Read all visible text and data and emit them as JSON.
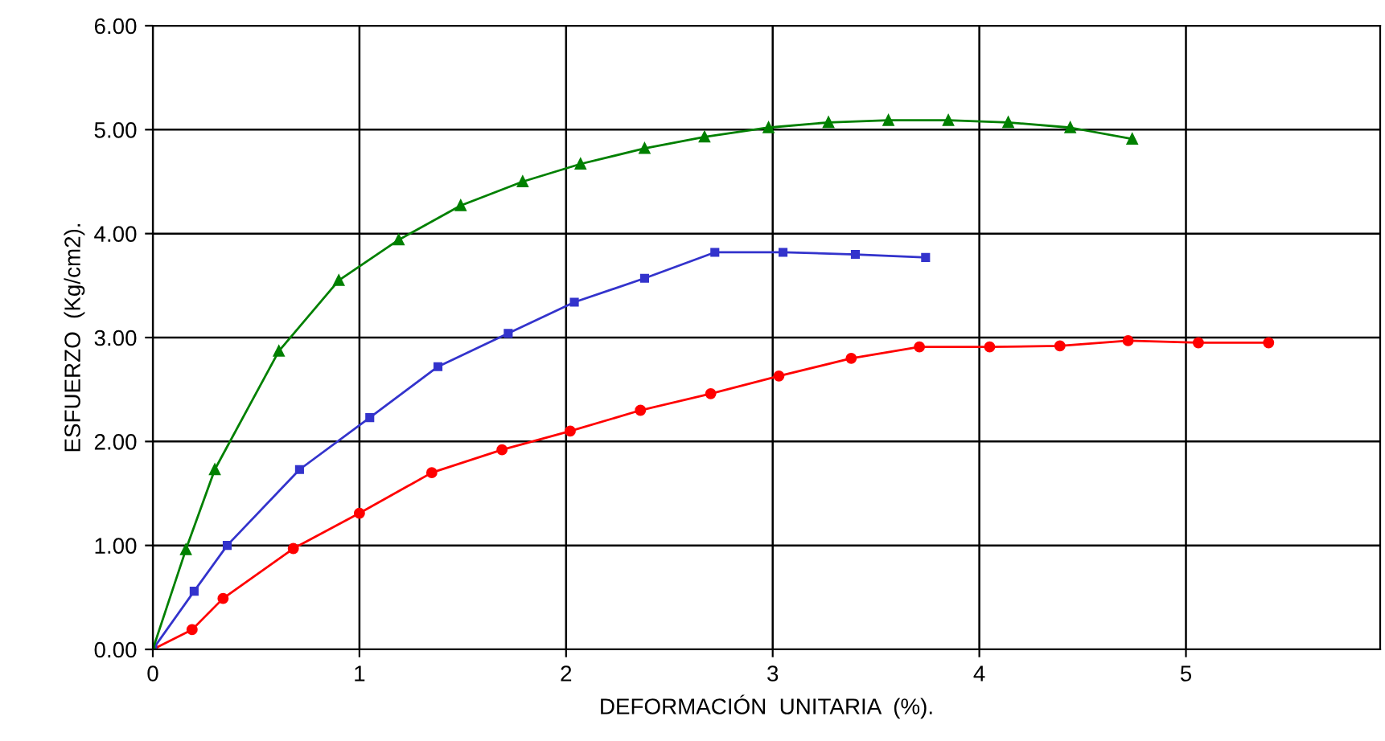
{
  "chart_data": {
    "type": "line",
    "xlabel": "DEFORMACIÓN  UNITARIA  (%).",
    "ylabel": "ESFUERZO  (Kg/cm2).",
    "xlim": [
      0,
      5.94
    ],
    "xticks": [
      0,
      1,
      2,
      3,
      4,
      5
    ],
    "ylim": [
      0,
      6
    ],
    "yticks": [
      {
        "value": 0,
        "label": "0.00"
      },
      {
        "value": 1,
        "label": "1.00"
      },
      {
        "value": 2,
        "label": "2.00"
      },
      {
        "value": 3,
        "label": "3.00"
      },
      {
        "value": 4,
        "label": "4.00"
      },
      {
        "value": 5,
        "label": "5.00"
      },
      {
        "value": 6,
        "label": "6.00"
      }
    ],
    "grid": true,
    "line_style": "solid",
    "series": [
      {
        "color": "#ff0000",
        "marker": "circle",
        "x": [
          0,
          0.19,
          0.34,
          0.68,
          1.0,
          1.35,
          1.69,
          2.02,
          2.36,
          2.7,
          3.03,
          3.38,
          3.71,
          4.05,
          4.39,
          4.72,
          5.06,
          5.4
        ],
        "values": [
          0,
          0.19,
          0.49,
          0.97,
          1.31,
          1.7,
          1.92,
          2.1,
          2.3,
          2.46,
          2.63,
          2.8,
          2.91,
          2.91,
          2.92,
          2.97,
          2.95,
          2.95
        ]
      },
      {
        "color": "#3333cc",
        "marker": "square",
        "x": [
          0,
          0.2,
          0.36,
          0.71,
          1.05,
          1.38,
          1.72,
          2.04,
          2.38,
          2.72,
          3.05,
          3.4,
          3.74
        ],
        "values": [
          0,
          0.56,
          1.0,
          1.73,
          2.23,
          2.72,
          3.04,
          3.34,
          3.57,
          3.82,
          3.82,
          3.8,
          3.77
        ]
      },
      {
        "color": "#008000",
        "marker": "triangle",
        "x": [
          0,
          0.16,
          0.3,
          0.61,
          0.9,
          1.19,
          1.49,
          1.79,
          2.07,
          2.38,
          2.67,
          2.98,
          3.27,
          3.56,
          3.85,
          4.14,
          4.44,
          4.74
        ],
        "values": [
          0,
          0.96,
          1.73,
          2.87,
          3.55,
          3.94,
          4.27,
          4.5,
          4.67,
          4.82,
          4.93,
          5.02,
          5.07,
          5.09,
          5.09,
          5.07,
          5.02,
          4.91
        ]
      }
    ]
  }
}
